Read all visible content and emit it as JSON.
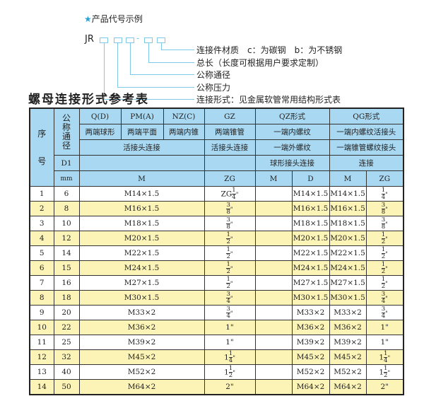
{
  "legend": {
    "heading": "产品代号示例",
    "code": "JR",
    "dash": "-",
    "items": [
      "连接件材质　c：为碳钢　b：为不锈钢",
      "总长（长度可根据用户要求定制）",
      "公称通径",
      "公称压力",
      "连接形式：见金属软管常用结构形式表"
    ]
  },
  "title": "螺母连接形式参考表",
  "header": {
    "seq": [
      "序",
      "号"
    ],
    "dn": [
      "公",
      "称",
      "通",
      "径"
    ],
    "d1": "D1",
    "mm": "mm",
    "r1": [
      "Q(D)",
      "PM(A)",
      "NZ(C)",
      "GZ",
      "QZ形式",
      "QG形式"
    ],
    "r2": [
      "两端球形",
      "两端平面",
      "两端内锥",
      "两端锥管",
      "一端内螺纹",
      "一端内螺纹活接头"
    ],
    "r3": [
      "活接头连接",
      "活接头连接",
      "一端外螺纹",
      "一端锥管螺纹接头"
    ],
    "r4": [
      "球形接头连接",
      "连接"
    ],
    "r5": [
      "M",
      "ZG",
      "M",
      "D",
      "M",
      "ZG"
    ]
  },
  "colors": {
    "header": "#a9d9f2",
    "stripe": "#fcf4b6",
    "accent": "#7fc8e8"
  },
  "rows": [
    {
      "no": "1",
      "dn": "6",
      "m": "M14×1.5",
      "zg": {
        "pre": "ZG",
        "num": "1",
        "den": "4",
        "unit": "\""
      },
      "qzm": "",
      "qzd": "M14×1.5",
      "qgm": "M14×1.5",
      "qgzg": {
        "pre": "",
        "num": "1",
        "den": "4",
        "unit": "\""
      }
    },
    {
      "no": "2",
      "dn": "8",
      "m": "M16×1.5",
      "zg": {
        "pre": "",
        "num": "3",
        "den": "8",
        "unit": "\""
      },
      "qzm": "",
      "qzd": "M16×1.5",
      "qgm": "M16×1.5",
      "qgzg": {
        "pre": "",
        "num": "3",
        "den": "8",
        "unit": "\""
      }
    },
    {
      "no": "3",
      "dn": "10",
      "m": "M18×1.5",
      "zg": {
        "pre": "",
        "num": "3",
        "den": "8",
        "unit": "\""
      },
      "qzm": "",
      "qzd": "M18×1.5",
      "qgm": "M18×1.5",
      "qgzg": {
        "pre": "",
        "num": "3",
        "den": "8",
        "unit": "\""
      }
    },
    {
      "no": "4",
      "dn": "12",
      "m": "M20×1.5",
      "zg": {
        "pre": "",
        "num": "1",
        "den": "2",
        "unit": "\""
      },
      "qzm": "",
      "qzd": "M20×1.5",
      "qgm": "M20×1.5",
      "qgzg": {
        "pre": "",
        "num": "1",
        "den": "2",
        "unit": "\""
      }
    },
    {
      "no": "5",
      "dn": "14",
      "m": "M22×1.5",
      "zg": {
        "pre": "",
        "num": "1",
        "den": "2",
        "unit": "\""
      },
      "qzm": "",
      "qzd": "M22×1.5",
      "qgm": "M22×1.5",
      "qgzg": {
        "pre": "",
        "num": "1",
        "den": "2",
        "unit": "\""
      }
    },
    {
      "no": "6",
      "dn": "15",
      "m": "M24×1.5",
      "zg": {
        "pre": "",
        "num": "1",
        "den": "2",
        "unit": "\""
      },
      "qzm": "",
      "qzd": "M24×1.5",
      "qgm": "M24×1.5",
      "qgzg": {
        "pre": "",
        "num": "1",
        "den": "2",
        "unit": "\""
      }
    },
    {
      "no": "7",
      "dn": "16",
      "m": "M27×1.5",
      "zg": {
        "pre": "",
        "num": "1",
        "den": "2",
        "unit": "\""
      },
      "qzm": "",
      "qzd": "M27×1.5",
      "qgm": "M27×1.5",
      "qgzg": {
        "pre": "",
        "num": "1",
        "den": "2",
        "unit": "\""
      }
    },
    {
      "no": "8",
      "dn": "18",
      "m": "M30×1.5",
      "zg": {
        "pre": "",
        "num": "3",
        "den": "4",
        "unit": "\""
      },
      "qzm": "",
      "qzd": "M30×1.5",
      "qgm": "M30×1.5",
      "qgzg": {
        "pre": "",
        "num": "3",
        "den": "4",
        "unit": "\""
      }
    },
    {
      "no": "9",
      "dn": "20",
      "m": "M33×2",
      "zg": {
        "pre": "",
        "num": "3",
        "den": "4",
        "unit": "\""
      },
      "qzm": "",
      "qzd": "M33×2",
      "qgm": "M33×2",
      "qgzg": {
        "pre": "",
        "num": "3",
        "den": "4",
        "unit": "\""
      }
    },
    {
      "no": "10",
      "dn": "22",
      "m": "M36×2",
      "zg": {
        "pre": "1\"",
        "num": "",
        "den": "",
        "unit": ""
      },
      "qzm": "",
      "qzd": "M36×2",
      "qgm": "M36×2",
      "qgzg": {
        "pre": "1\"",
        "num": "",
        "den": "",
        "unit": ""
      }
    },
    {
      "no": "11",
      "dn": "25",
      "m": "M39×2",
      "zg": {
        "pre": "1\"",
        "num": "",
        "den": "",
        "unit": ""
      },
      "qzm": "",
      "qzd": "M39×2",
      "qgm": "M39×2",
      "qgzg": {
        "pre": "1\"",
        "num": "",
        "den": "",
        "unit": ""
      }
    },
    {
      "no": "12",
      "dn": "32",
      "m": "M45×2",
      "zg": {
        "pre": "1",
        "num": "1",
        "den": "4",
        "unit": "\""
      },
      "qzm": "",
      "qzd": "M45×2",
      "qgm": "M45×2",
      "qgzg": {
        "pre": "1",
        "num": "1",
        "den": "4",
        "unit": "\""
      }
    },
    {
      "no": "13",
      "dn": "40",
      "m": "M52×2",
      "zg": {
        "pre": "1",
        "num": "1",
        "den": "2",
        "unit": "\""
      },
      "qzm": "",
      "qzd": "M52×2",
      "qgm": "M52×2",
      "qgzg": {
        "pre": "1",
        "num": "1",
        "den": "2",
        "unit": "\""
      }
    },
    {
      "no": "14",
      "dn": "50",
      "m": "M64×2",
      "zg": {
        "pre": "2\"",
        "num": "",
        "den": "",
        "unit": ""
      },
      "qzm": "",
      "qzd": "M64×2",
      "qgm": "M64×2",
      "qgzg": {
        "pre": "2\"",
        "num": "",
        "den": "",
        "unit": ""
      }
    }
  ]
}
